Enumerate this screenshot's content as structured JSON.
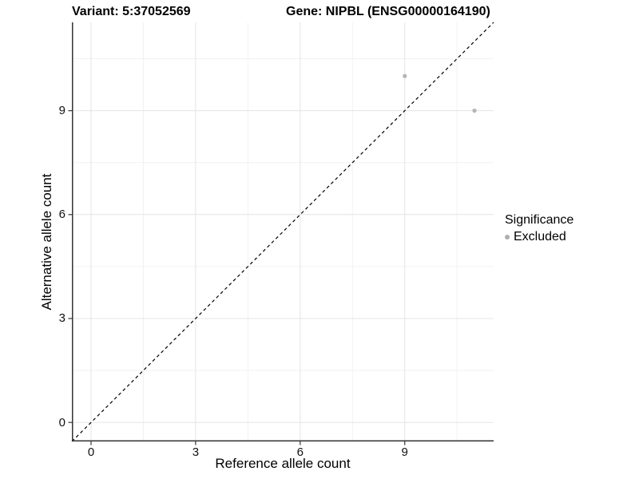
{
  "figure": {
    "background": "#ffffff"
  },
  "chart_data": {
    "type": "scatter",
    "title_left": "Variant: 5:37052569",
    "title_right": "Gene: NIPBL (ENSG00000164190)",
    "xlabel": "Reference allele count",
    "ylabel": "Alternative allele count",
    "xlim": [
      -0.55,
      11.55
    ],
    "ylim": [
      -0.55,
      11.55
    ],
    "x_ticks": [
      0,
      3,
      6,
      9
    ],
    "y_ticks": [
      0,
      3,
      6,
      9
    ],
    "x_minor_ticks": [
      1.5,
      4.5,
      7.5,
      10.5
    ],
    "y_minor_ticks": [
      1.5,
      4.5,
      7.5,
      10.5
    ],
    "grid": true,
    "legend_position": "right",
    "reference_line": {
      "kind": "identity y=x",
      "style": "dashed",
      "color": "#000000"
    },
    "series": [
      {
        "name": "Excluded",
        "color": "#b5b5b5",
        "points": [
          {
            "x": 9,
            "y": 10
          },
          {
            "x": 11,
            "y": 9
          }
        ]
      }
    ],
    "legend": {
      "title": "Significance",
      "entries": [
        {
          "label": "Excluded",
          "color": "#aeaeae"
        }
      ]
    },
    "colors": {
      "grid_major": "#e4e4e4",
      "grid_minor": "#f2f2f2",
      "axis_line": "#333333",
      "point": "#b5b5b5"
    }
  }
}
